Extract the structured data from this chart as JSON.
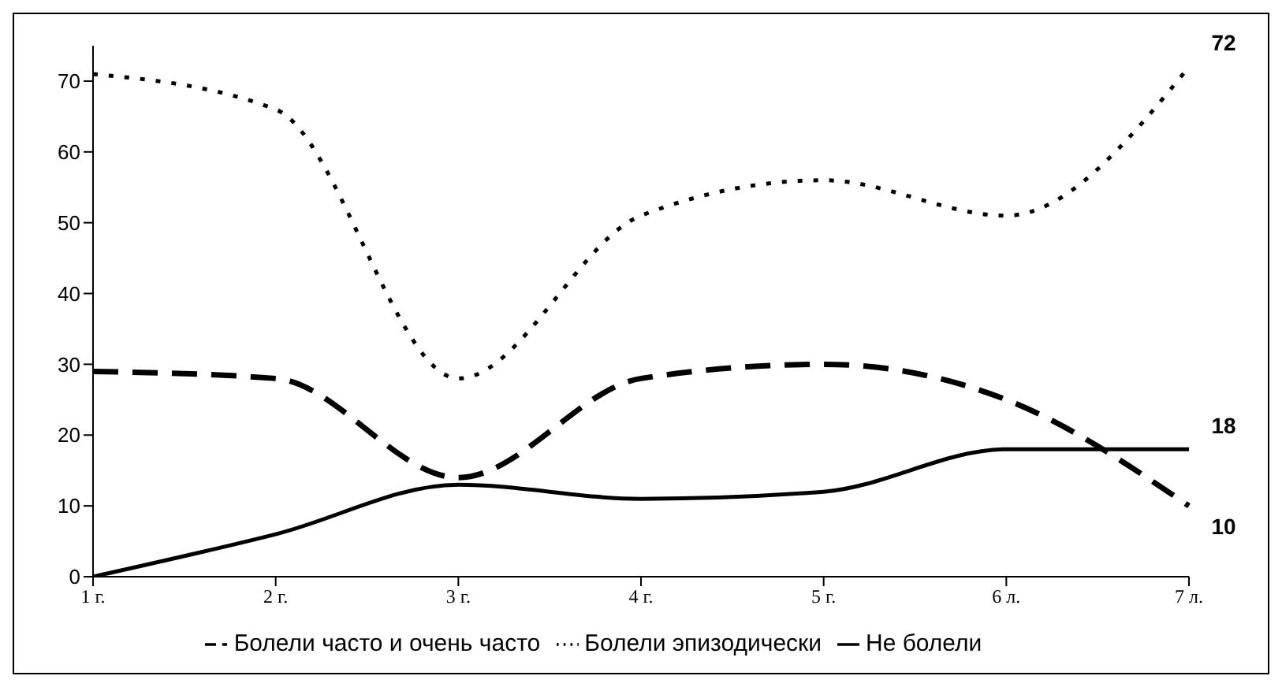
{
  "chart_data": {
    "type": "line",
    "categories": [
      "1 г.",
      "2 г.",
      "3 г.",
      "4 г.",
      "5 г.",
      "6 л.",
      "7 л."
    ],
    "ylim": [
      0,
      75
    ],
    "yticks": [
      0,
      10,
      20,
      30,
      40,
      50,
      60,
      70
    ],
    "grid": false,
    "legend": "bottom",
    "marker": "none",
    "series": [
      {
        "name": "Болели часто и очень часто",
        "color": "#000000",
        "line_style": "dashed",
        "values": [
          29,
          28,
          14,
          28,
          30,
          25,
          10
        ],
        "value_labels": [
          null,
          null,
          null,
          null,
          null,
          null,
          "10"
        ]
      },
      {
        "name": "Не болели",
        "color": "#000000",
        "line_style": "solid",
        "values": [
          0,
          6,
          13,
          11,
          12,
          18,
          18
        ],
        "value_labels": [
          null,
          null,
          null,
          null,
          null,
          null,
          "18"
        ]
      },
      {
        "name": "Болели эпизодически",
        "color": "#000000",
        "line_style": "dotted",
        "values": [
          71,
          66,
          28,
          51,
          56,
          51,
          72
        ],
        "value_labels": [
          null,
          null,
          null,
          null,
          null,
          null,
          "72"
        ]
      }
    ]
  }
}
